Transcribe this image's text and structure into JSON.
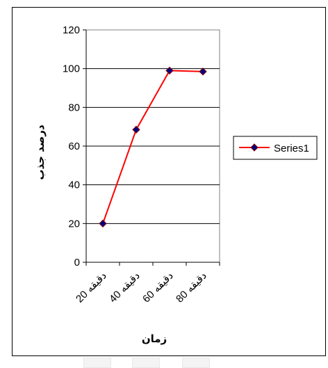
{
  "chart_data": {
    "type": "line",
    "title": "",
    "xlabel": "زمان",
    "ylabel": "درصد جذب",
    "categories": [
      "20 دقیقه",
      "40 دقیقه",
      "60 دقیقه",
      "80 دقیقه"
    ],
    "series": [
      {
        "name": "Series1",
        "values": [
          20,
          68.5,
          99,
          98.5
        ],
        "color": "#ff0000",
        "marker_color": "#000080"
      }
    ],
    "ylim": [
      0,
      120
    ],
    "yticks": [
      0,
      20,
      40,
      60,
      80,
      100,
      120
    ],
    "grid": "horizontal",
    "legend": "right"
  }
}
